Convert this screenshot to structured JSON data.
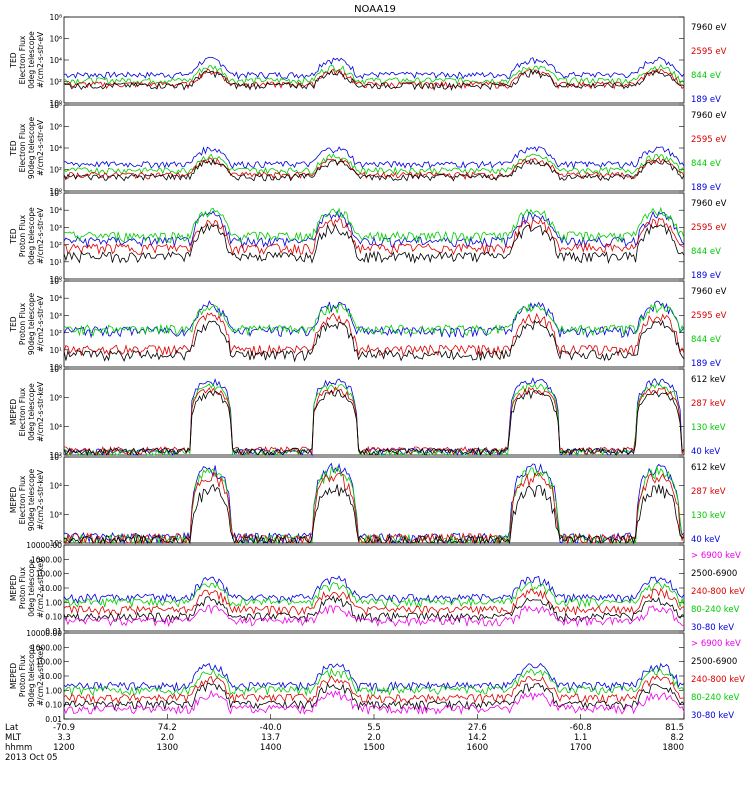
{
  "title": "NOAA19",
  "footer": {
    "row_labels": [
      "Lat",
      "MLT",
      "hhmm"
    ],
    "date": "2013 Oct 05",
    "ticks": [
      {
        "lat": "-70.9",
        "mlt": "3.3",
        "hhmm": "1200"
      },
      {
        "lat": "74.2",
        "mlt": "2.0",
        "hhmm": "1300"
      },
      {
        "lat": "-40.0",
        "mlt": "13.7",
        "hhmm": "1400"
      },
      {
        "lat": "5.5",
        "mlt": "2.0",
        "hhmm": "1500"
      },
      {
        "lat": "27.6",
        "mlt": "14.2",
        "hhmm": "1600"
      },
      {
        "lat": "-60.8",
        "mlt": "1.1",
        "hhmm": "1700"
      },
      {
        "lat": "81.5",
        "mlt": "8.2",
        "hhmm": "1800"
      }
    ]
  },
  "chart_data": {
    "type": "line",
    "title": "NOAA19",
    "x": {
      "label": "hhmm",
      "start": "1200",
      "end": "1800",
      "ticks": [
        "1200",
        "1300",
        "1400",
        "1500",
        "1600",
        "1700",
        "1800"
      ]
    },
    "colors": {
      "black": "#000000",
      "red": "#dd0000",
      "green": "#00cc00",
      "blue": "#0000dd",
      "magenta": "#ee00ee"
    },
    "events": [
      {
        "t": 1.42,
        "w": 0.2,
        "label": "pass"
      },
      {
        "t": 2.62,
        "w": 0.22,
        "label": "pass"
      },
      {
        "t": 4.55,
        "w": 0.24,
        "label": "pass"
      },
      {
        "t": 5.75,
        "w": 0.22,
        "label": "pass"
      }
    ],
    "panels": [
      {
        "ylabel": [
          "TED",
          "Electron Flux",
          "0deg telescope",
          "#/cm2-s-str-eV"
        ],
        "scale": "log",
        "ylim": [
          1,
          100000000
        ],
        "ticks": [
          "10⁰",
          "10²",
          "10⁴",
          "10⁶",
          "10⁸"
        ],
        "series": [
          {
            "name": "7960 eV",
            "color": "black",
            "base": 40,
            "peak": 600
          },
          {
            "name": "2595 eV",
            "color": "red",
            "base": 50,
            "peak": 800
          },
          {
            "name": "844 eV",
            "color": "green",
            "base": 120,
            "peak": 2000
          },
          {
            "name": "189 eV",
            "color": "blue",
            "base": 400,
            "peak": 10000
          }
        ]
      },
      {
        "ylabel": [
          "TED",
          "Electron Flux",
          "90deg telescope",
          "#/cm2-s-str-eV"
        ],
        "scale": "log",
        "ylim": [
          1,
          100000000
        ],
        "ticks": [
          "10⁰",
          "10²",
          "10⁴",
          "10⁶",
          "10⁸"
        ],
        "series": [
          {
            "name": "7960 eV",
            "color": "black",
            "base": 20,
            "peak": 500
          },
          {
            "name": "2595 eV",
            "color": "red",
            "base": 30,
            "peak": 700
          },
          {
            "name": "844 eV",
            "color": "green",
            "base": 80,
            "peak": 1500
          },
          {
            "name": "189 eV",
            "color": "blue",
            "base": 300,
            "peak": 8000
          }
        ]
      },
      {
        "ylabel": [
          "TED",
          "Proton Flux",
          "0deg telescope",
          "#/cm2-s-str-eV"
        ],
        "scale": "log",
        "ylim": [
          1,
          100000
        ],
        "ticks": [
          "10⁰",
          "10¹",
          "10²",
          "10³",
          "10⁴",
          "10⁵"
        ],
        "series": [
          {
            "name": "7960 eV",
            "color": "black",
            "base": 20,
            "peak": 1000
          },
          {
            "name": "2595 eV",
            "color": "red",
            "base": 60,
            "peak": 2000
          },
          {
            "name": "844 eV",
            "color": "green",
            "base": 300,
            "peak": 8000
          },
          {
            "name": "189 eV",
            "color": "blue",
            "base": 150,
            "peak": 5000
          }
        ]
      },
      {
        "ylabel": [
          "TED",
          "Proton Flux",
          "90deg telescope",
          "#/cm2-s-str-eV"
        ],
        "scale": "log",
        "ylim": [
          1,
          100000
        ],
        "ticks": [
          "10⁰",
          "10¹",
          "10²",
          "10³",
          "10⁴",
          "10⁵"
        ],
        "series": [
          {
            "name": "7960 eV",
            "color": "black",
            "base": 5,
            "peak": 300
          },
          {
            "name": "2595 eV",
            "color": "red",
            "base": 10,
            "peak": 800
          },
          {
            "name": "844 eV",
            "color": "green",
            "base": 150,
            "peak": 3000
          },
          {
            "name": "189 eV",
            "color": "blue",
            "base": 120,
            "peak": 4000
          }
        ]
      },
      {
        "ylabel": [
          "MEPED",
          "Electron Flux",
          "0deg telescope",
          "#/cm2-s-str-keV"
        ],
        "scale": "log",
        "ylim": [
          100,
          1000000000
        ],
        "ticks": [
          "10²",
          "10⁴",
          "10⁶",
          "10⁸"
        ],
        "series": [
          {
            "name": "612 keV",
            "color": "black",
            "base": 200,
            "peak": 10000000
          },
          {
            "name": "287 keV",
            "color": "red",
            "base": 250,
            "peak": 20000000
          },
          {
            "name": "130 keV",
            "color": "green",
            "base": 150,
            "peak": 40000000
          },
          {
            "name": "40 keV",
            "color": "blue",
            "base": 180,
            "peak": 100000000
          }
        ]
      },
      {
        "ylabel": [
          "MEPED",
          "Electron Flux",
          "90deg telescope",
          "#/cm2-s-str-keV"
        ],
        "scale": "log",
        "ylim": [
          100,
          1000000
        ],
        "ticks": [
          "10²",
          "10³",
          "10⁴",
          "10⁵"
        ],
        "series": [
          {
            "name": "612 keV",
            "color": "black",
            "base": 120,
            "peak": 30000
          },
          {
            "name": "287 keV",
            "color": "red",
            "base": 150,
            "peak": 120000
          },
          {
            "name": "130 keV",
            "color": "green",
            "base": 130,
            "peak": 200000
          },
          {
            "name": "40 keV",
            "color": "blue",
            "base": 160,
            "peak": 300000
          }
        ]
      },
      {
        "ylabel": [
          "MEPED",
          "Proton Flux",
          "0deg telescope",
          "#/cm2-s-str-keV"
        ],
        "scale": "log",
        "ylim": [
          0.01,
          10000
        ],
        "ticks": [
          "0.01",
          "0.10",
          "1.00",
          "10.00",
          "100.00",
          "1000.00",
          "10000.00"
        ],
        "series": [
          {
            "name": "> 6900 keV",
            "color": "magenta",
            "base": 0.05,
            "peak": 0.4
          },
          {
            "name": "2500-6900",
            "color": "black",
            "base": 0.1,
            "peak": 1.5
          },
          {
            "name": "240-800 keV",
            "color": "red",
            "base": 0.3,
            "peak": 5
          },
          {
            "name": "80-240 keV",
            "color": "green",
            "base": 1,
            "peak": 15
          },
          {
            "name": "30-80 keV",
            "color": "blue",
            "base": 2,
            "peak": 40
          }
        ]
      },
      {
        "ylabel": [
          "MEPED",
          "Proton Flux",
          "90deg telescope",
          "#/cm2-s-str-keV"
        ],
        "scale": "log",
        "ylim": [
          0.01,
          10000
        ],
        "ticks": [
          "0.01",
          "0.10",
          "1.00",
          "10.00",
          "100.00",
          "1000.00",
          "10000.00"
        ],
        "series": [
          {
            "name": "> 6900 keV",
            "color": "magenta",
            "base": 0.05,
            "peak": 0.5
          },
          {
            "name": "2500-6900",
            "color": "black",
            "base": 0.1,
            "peak": 2
          },
          {
            "name": "240-800 keV",
            "color": "red",
            "base": 0.3,
            "peak": 6
          },
          {
            "name": "80-240 keV",
            "color": "green",
            "base": 1,
            "peak": 20
          },
          {
            "name": "30-80 keV",
            "color": "blue",
            "base": 2,
            "peak": 50
          }
        ]
      }
    ]
  }
}
